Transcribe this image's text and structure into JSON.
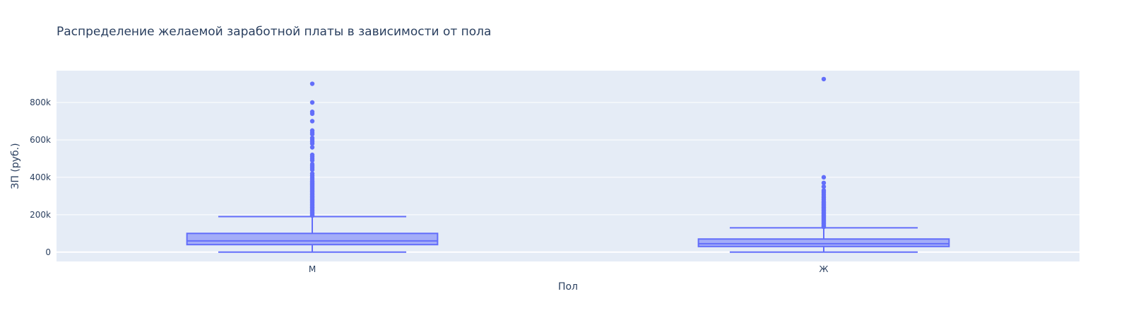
{
  "chart_data": {
    "type": "box",
    "title": "Распределение желаемой заработной платы в зависимости от пола",
    "xlabel": "Пол",
    "ylabel": "ЗП (руб.)",
    "categories": [
      "М",
      "Ж"
    ],
    "ylim": [
      -50000,
      970000
    ],
    "yticks": [
      0,
      200000,
      400000,
      600000,
      800000
    ],
    "ytick_labels": [
      "0",
      "200k",
      "400k",
      "600k",
      "800k"
    ],
    "grid": true,
    "colors": {
      "box_line": "#636efa",
      "box_fill": "rgba(99,110,250,0.5)",
      "plot_bg": "#e5ecf6",
      "grid": "#ffffff",
      "text": "#2a3f5f"
    },
    "boxes": [
      {
        "name": "М",
        "min": 0,
        "q1": 40000,
        "median": 60000,
        "q3": 100000,
        "upper_fence": 190000,
        "outliers": [
          195000,
          200000,
          205000,
          210000,
          215000,
          220000,
          225000,
          230000,
          235000,
          240000,
          245000,
          250000,
          255000,
          260000,
          265000,
          270000,
          275000,
          280000,
          285000,
          290000,
          295000,
          300000,
          305000,
          310000,
          315000,
          320000,
          325000,
          330000,
          335000,
          340000,
          345000,
          350000,
          355000,
          360000,
          365000,
          370000,
          375000,
          380000,
          390000,
          400000,
          410000,
          420000,
          440000,
          450000,
          460000,
          470000,
          490000,
          500000,
          510000,
          520000,
          560000,
          580000,
          590000,
          600000,
          610000,
          630000,
          640000,
          650000,
          700000,
          740000,
          750000,
          800000,
          900000
        ]
      },
      {
        "name": "Ж",
        "min": 0,
        "q1": 30000,
        "median": 45000,
        "q3": 70000,
        "upper_fence": 130000,
        "outliers": [
          135000,
          140000,
          145000,
          150000,
          155000,
          160000,
          165000,
          170000,
          175000,
          180000,
          185000,
          190000,
          195000,
          200000,
          205000,
          210000,
          215000,
          220000,
          225000,
          230000,
          235000,
          240000,
          245000,
          250000,
          255000,
          260000,
          265000,
          270000,
          280000,
          290000,
          300000,
          310000,
          320000,
          330000,
          350000,
          370000,
          400000,
          925000
        ]
      }
    ]
  }
}
